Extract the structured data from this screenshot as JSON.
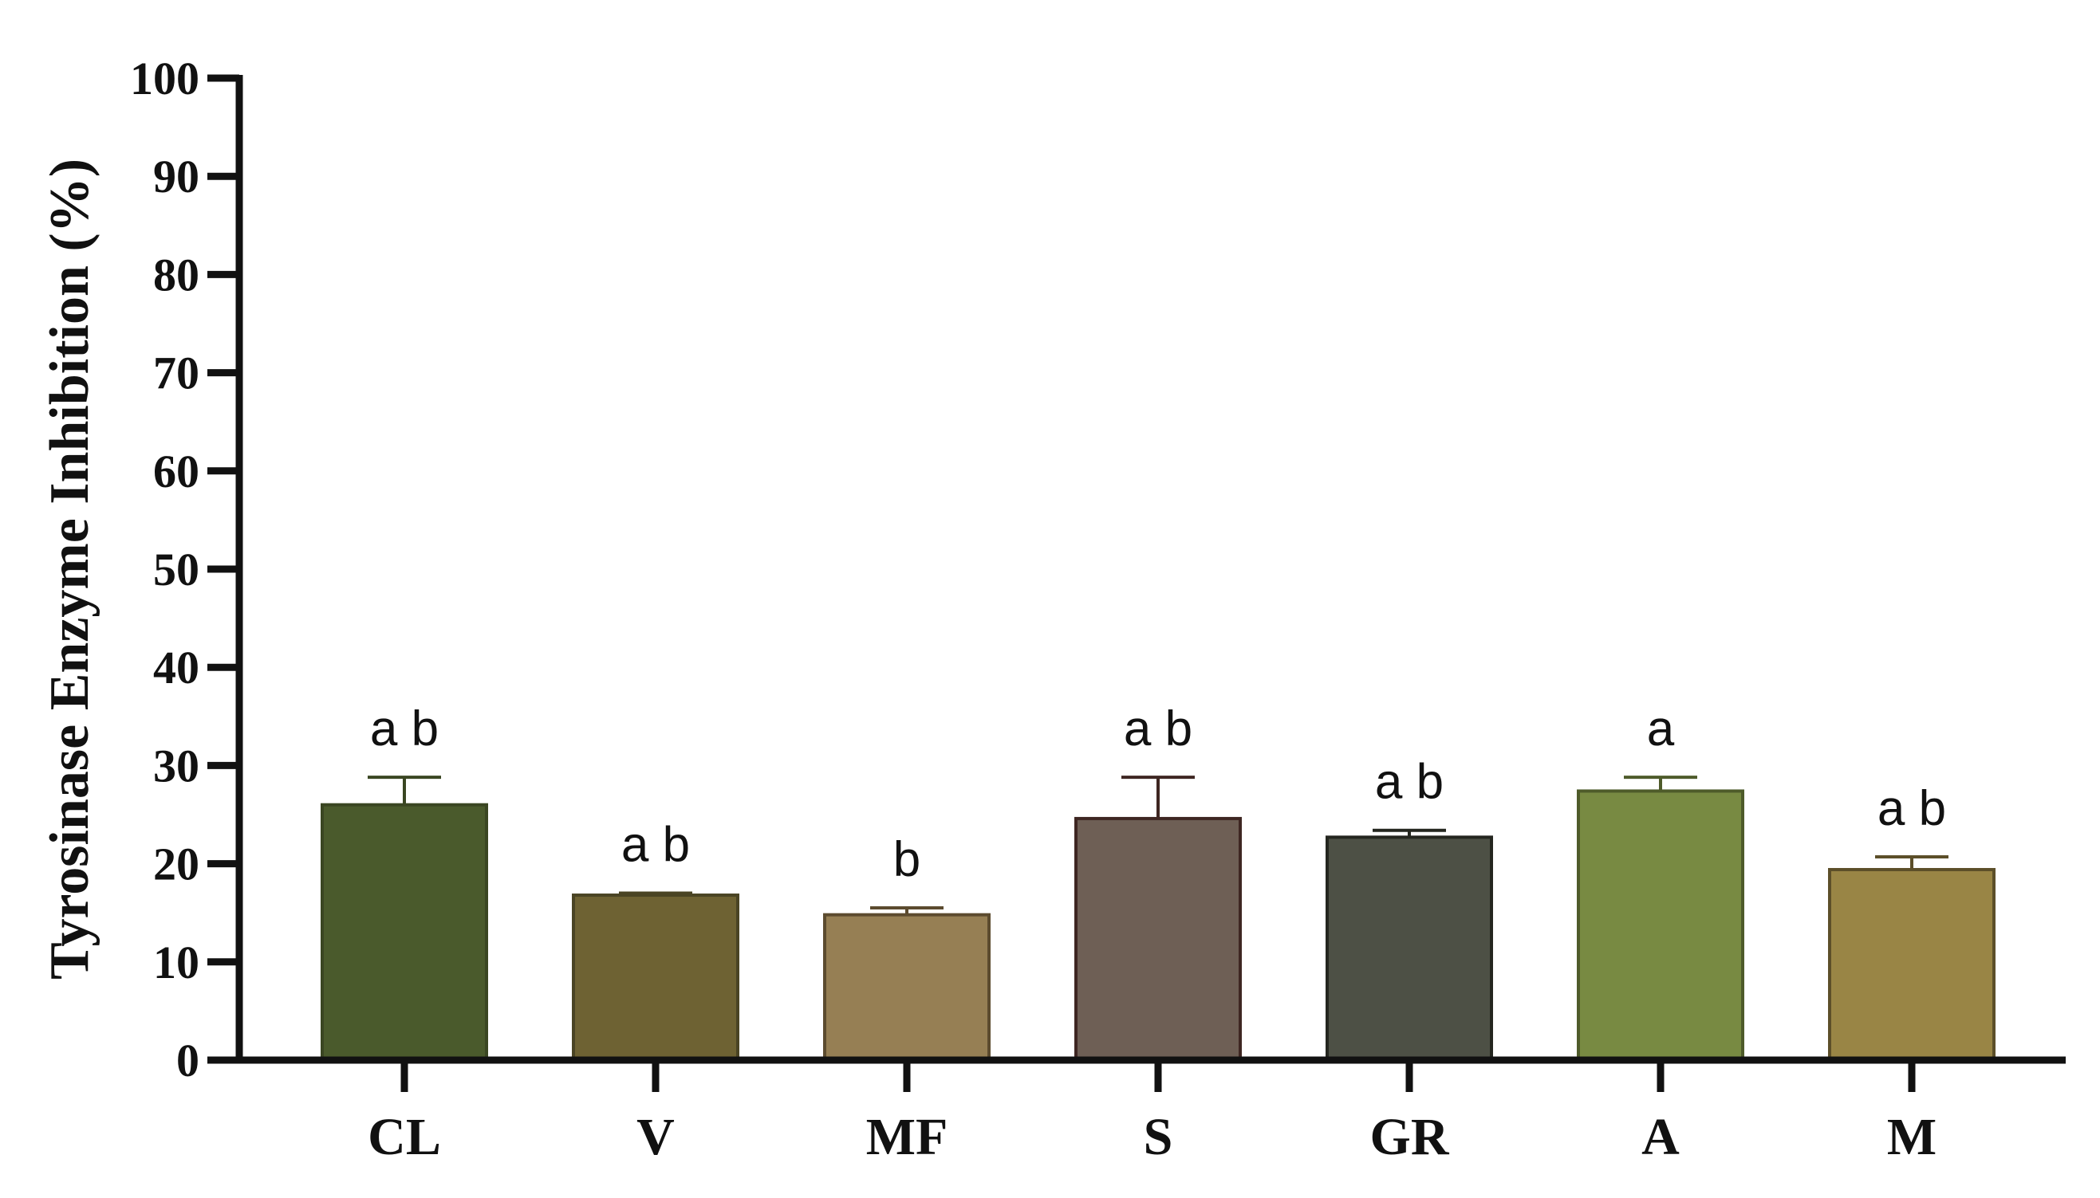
{
  "chart_data": {
    "type": "bar",
    "ylabel": "Tyrosinase Enzyme Inhibition (%)",
    "xlabel": "",
    "ylim": [
      0,
      100
    ],
    "yticks": [
      "0",
      "10",
      "20",
      "30",
      "40",
      "50",
      "60",
      "70",
      "80",
      "90",
      "100"
    ],
    "categories": [
      "CL",
      "V",
      "MF",
      "S",
      "GR",
      "A",
      "M"
    ],
    "values": [
      26.0,
      16.8,
      14.8,
      24.6,
      22.7,
      27.4,
      19.4
    ],
    "errors": [
      2.8,
      0.2,
      0.7,
      4.2,
      0.7,
      1.4,
      1.3
    ],
    "significance": [
      "a b",
      "a b",
      "b",
      "a b",
      "a b",
      "a",
      "a b"
    ],
    "colors": [
      "#4a5a2c",
      "#6e6233",
      "#967f54",
      "#6e5f55",
      "#4d5045",
      "#788a42",
      "#998545"
    ],
    "error_colors": [
      "#3a4622",
      "#4a4424",
      "#5c4b2f",
      "#3e2622",
      "#24261f",
      "#4e5b2a",
      "#5c4f29"
    ],
    "grid": false,
    "legend": "none"
  }
}
